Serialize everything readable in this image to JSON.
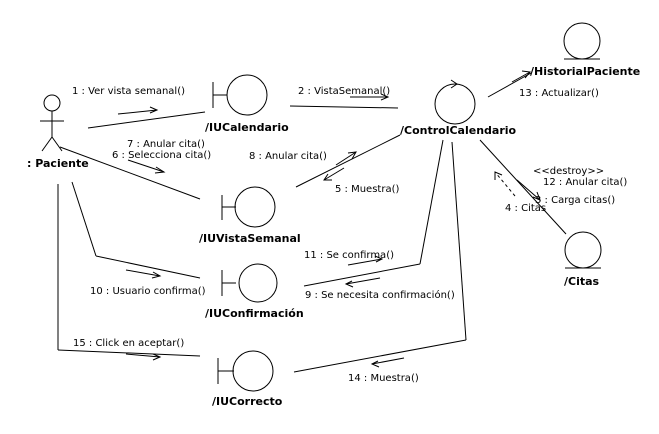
{
  "objects": {
    "paciente": ": Paciente",
    "iu_calendario": "/IUCalendario",
    "control_calendario": "/ControlCalendario",
    "historial_paciente": "/HistorialPaciente",
    "iu_vista_semanal": "/IUVistaSemanal",
    "citas": "/Citas",
    "iu_confirmacion": "/IUConfirmación",
    "iu_correcto": "/IUCorrecto"
  },
  "messages": {
    "m1": "1 : Ver vista semanal()",
    "m2": "2 : VistaSemanal()",
    "m3": "3 : Carga citas()",
    "m4": "4 : Citas",
    "m5": "5 : Muestra()",
    "m6": "6 : Selecciona cita()",
    "m7": "7 : Anular cita()",
    "m8": "8 : Anular cita()",
    "m9": "9 : Se necesita confirmación()",
    "m10": "10 : Usuario confirma()",
    "m11": "11 : Se confirma()",
    "m12": "12 : Anular cita()",
    "m13": "13 : Actualizar()",
    "m14": "14 : Muestra()",
    "m15": "15 : Click en aceptar()",
    "destroy": "<<destroy>>"
  }
}
